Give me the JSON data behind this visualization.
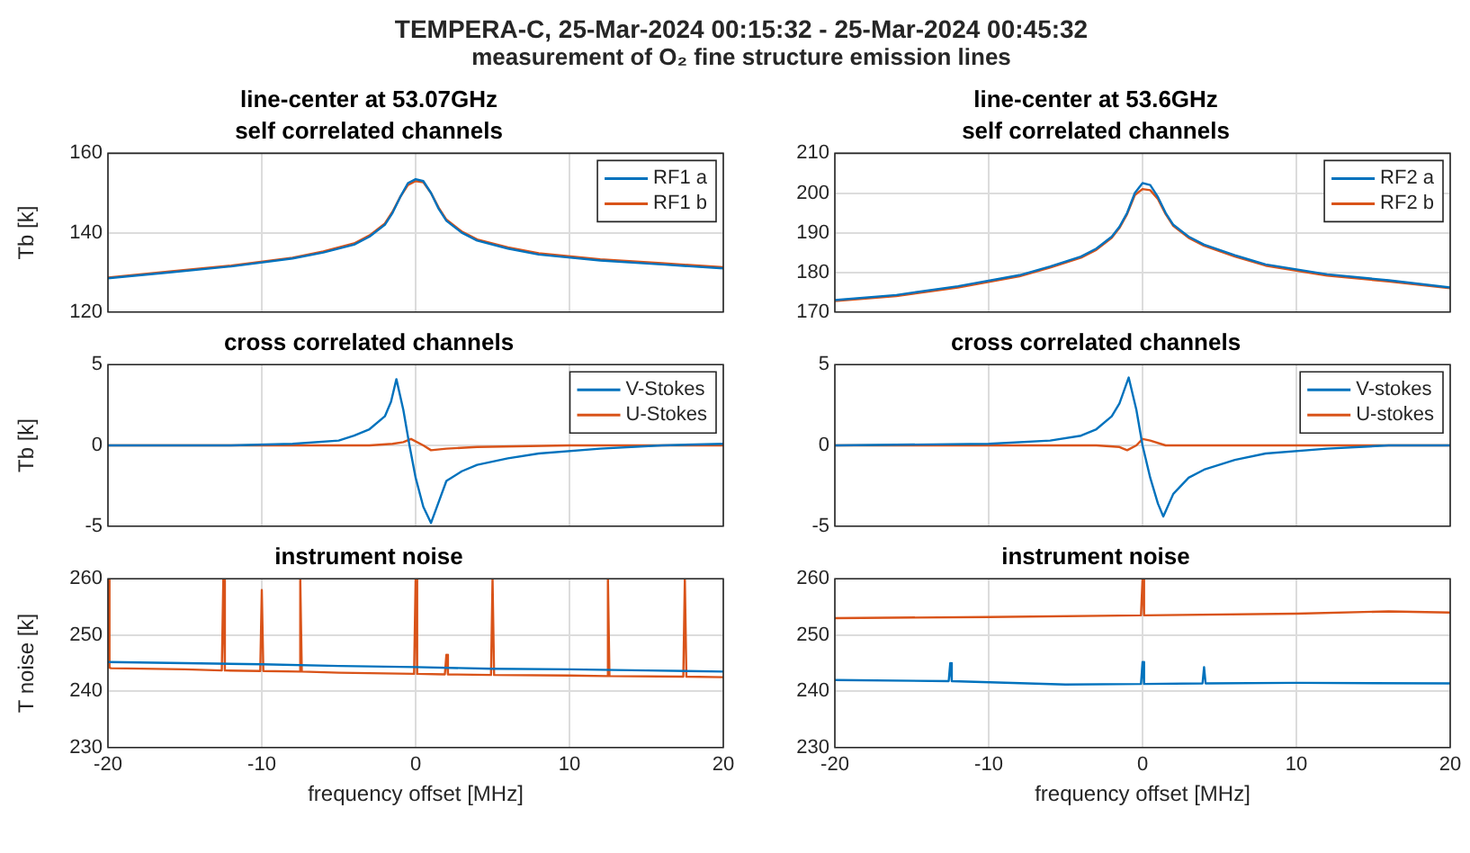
{
  "chart_data": [
    {
      "type": "other",
      "title": "TEMPERA-C, 25-Mar-2024 00:15:32 - 25-Mar-2024 00:45:32",
      "subtitle": "measurement of O₂ fine structure emission lines"
    },
    {
      "type": "line",
      "title": "line-center at 53.07GHz",
      "subtitle": "self correlated channels",
      "ylabel": "Tb [k]",
      "x": [
        -20,
        -16,
        -12,
        -8,
        -6,
        -4,
        -3,
        -2,
        -1.5,
        -1,
        -0.5,
        0,
        0.5,
        1,
        1.5,
        2,
        3,
        4,
        6,
        8,
        12,
        16,
        20
      ],
      "series": [
        {
          "name": "RF1 a",
          "color": "#0072bd",
          "values": [
            128.5,
            130,
            131.5,
            133.5,
            135,
            137,
            139,
            142,
            145,
            149,
            152.5,
            153.5,
            153,
            150,
            146,
            143,
            140,
            138,
            136,
            134.5,
            133,
            132,
            131
          ]
        },
        {
          "name": "RF1 b",
          "color": "#d95319",
          "values": [
            128.7,
            130.2,
            131.7,
            133.7,
            135.3,
            137.3,
            139.3,
            142.3,
            145.3,
            149,
            152,
            153,
            152.7,
            150,
            146.3,
            143.3,
            140.3,
            138.3,
            136.3,
            134.8,
            133.3,
            132.3,
            131.3
          ]
        }
      ],
      "xlim": [
        -20,
        20
      ],
      "xticks": [
        -20,
        -10,
        0,
        10,
        20
      ],
      "ylim": [
        120,
        160
      ],
      "yticks": [
        120,
        140,
        160
      ],
      "grid": true,
      "legend": "top right",
      "tick_labels": "y"
    },
    {
      "type": "line",
      "title": "line-center at 53.6GHz",
      "subtitle": "self correlated channels",
      "x": [
        -20,
        -16,
        -12,
        -8,
        -6,
        -4,
        -3,
        -2,
        -1.5,
        -1,
        -0.5,
        0,
        0.5,
        1,
        1.5,
        2,
        3,
        4,
        6,
        8,
        12,
        16,
        20
      ],
      "series": [
        {
          "name": "RF2 a",
          "color": "#0072bd",
          "values": [
            173,
            174.3,
            176.5,
            179.3,
            181.5,
            184,
            186,
            189,
            191.5,
            195,
            200,
            202.5,
            202,
            199,
            195,
            192,
            189,
            187,
            184.3,
            182,
            179.5,
            178,
            176.2
          ]
        },
        {
          "name": "RF2 b",
          "color": "#d95319",
          "values": [
            172.8,
            174,
            176.2,
            179,
            181.2,
            183.7,
            185.7,
            188.7,
            191.2,
            194.7,
            199.5,
            201,
            200.7,
            198.5,
            194.7,
            191.7,
            188.7,
            186.7,
            184,
            181.7,
            179.2,
            177.7,
            176
          ]
        }
      ],
      "xlim": [
        -20,
        20
      ],
      "xticks": [
        -20,
        -10,
        0,
        10,
        20
      ],
      "ylim": [
        170,
        210
      ],
      "yticks": [
        170,
        180,
        190,
        200,
        210
      ],
      "grid": true,
      "legend": "top right",
      "tick_labels": "y"
    },
    {
      "type": "line",
      "title": "cross correlated channels",
      "ylabel": "Tb [k]",
      "series": [
        {
          "name": "V-Stokes",
          "color": "#0072bd",
          "x": [
            -20,
            -12,
            -8,
            -5,
            -4,
            -3,
            -2,
            -1.6,
            -1.25,
            -0.8,
            -0.4,
            0,
            0.5,
            1,
            1.5,
            2,
            3,
            4,
            6,
            8,
            12,
            16,
            20
          ],
          "values": [
            0,
            0,
            0.1,
            0.3,
            0.6,
            1,
            1.8,
            2.7,
            4.1,
            2.2,
            0,
            -2,
            -3.8,
            -4.8,
            -3.5,
            -2.2,
            -1.6,
            -1.2,
            -0.8,
            -0.5,
            -0.2,
            0,
            0.1
          ]
        },
        {
          "name": "U-Stokes",
          "color": "#d95319",
          "x": [
            -20,
            -10,
            -3,
            -1.5,
            -0.8,
            -0.3,
            0.5,
            1,
            2,
            4,
            10,
            20
          ],
          "values": [
            0,
            0,
            0,
            0.1,
            0.2,
            0.4,
            0,
            -0.3,
            -0.2,
            -0.1,
            0,
            0
          ]
        }
      ],
      "xlim": [
        -20,
        20
      ],
      "xticks": [
        -20,
        -10,
        0,
        10,
        20
      ],
      "ylim": [
        -5,
        5
      ],
      "yticks": [
        -5,
        0,
        5
      ],
      "grid": true,
      "legend": "top right",
      "tick_labels": "y"
    },
    {
      "type": "line",
      "title": "cross correlated channels",
      "series": [
        {
          "name": "V-stokes",
          "color": "#0072bd",
          "x": [
            -20,
            -10,
            -6,
            -4,
            -3,
            -2,
            -1.5,
            -0.9,
            -0.4,
            0,
            0.5,
            1,
            1.35,
            2,
            3,
            4,
            6,
            8,
            12,
            16,
            20
          ],
          "values": [
            0,
            0.1,
            0.3,
            0.6,
            1,
            1.8,
            2.6,
            4.2,
            2.2,
            0,
            -2,
            -3.6,
            -4.4,
            -3,
            -2,
            -1.5,
            -0.9,
            -0.5,
            -0.2,
            0,
            0
          ]
        },
        {
          "name": "U-stokes",
          "color": "#d95319",
          "x": [
            -20,
            -10,
            -3,
            -1.5,
            -1,
            -0.4,
            0,
            0.5,
            1.5,
            3,
            10,
            20
          ],
          "values": [
            0,
            0,
            0,
            -0.1,
            -0.3,
            0,
            0.4,
            0.3,
            0,
            0,
            0,
            0
          ]
        }
      ],
      "xlim": [
        -20,
        20
      ],
      "xticks": [
        -20,
        -10,
        0,
        10,
        20
      ],
      "ylim": [
        -5,
        5
      ],
      "yticks": [
        -5,
        0,
        5
      ],
      "grid": true,
      "legend": "top right",
      "tick_labels": "y"
    },
    {
      "type": "line",
      "title": "instrument noise",
      "ylabel": "T noise [k]",
      "xlabel": "frequency offset [MHz]",
      "series": [
        {
          "color": "#0072bd",
          "x": [
            -20,
            -15,
            -10,
            -5,
            0,
            5,
            10,
            15,
            20
          ],
          "values": [
            245.2,
            245,
            244.8,
            244.5,
            244.3,
            244,
            243.9,
            243.7,
            243.5
          ]
        },
        {
          "color": "#d95319",
          "x": [
            -20,
            -19.9,
            -19.8,
            -15,
            -12.6,
            -12.5,
            -12.4,
            -10.1,
            -10,
            -9.9,
            -7.6,
            -7.5,
            -7.4,
            -5,
            -0.1,
            0,
            0.1,
            1.9,
            2,
            2.1,
            4.9,
            5,
            5.1,
            10,
            12.4,
            12.5,
            12.6,
            17.4,
            17.5,
            17.6,
            20
          ],
          "values": [
            260,
            244.2,
            244.1,
            243.9,
            243.7,
            260,
            243.7,
            243.6,
            258,
            243.6,
            243.5,
            260,
            243.5,
            243.3,
            243.1,
            260,
            243.1,
            243,
            246.5,
            243,
            242.9,
            260,
            242.9,
            242.8,
            242.7,
            260,
            242.7,
            242.6,
            260,
            242.6,
            242.5
          ]
        }
      ],
      "xlim": [
        -20,
        20
      ],
      "xticks": [
        -20,
        -10,
        0,
        10,
        20
      ],
      "ylim": [
        230,
        260
      ],
      "yticks": [
        230,
        240,
        250,
        260
      ],
      "grid": true
    },
    {
      "type": "line",
      "title": "instrument noise",
      "xlabel": "frequency offset [MHz]",
      "series": [
        {
          "color": "#d95319",
          "x": [
            -20,
            -10,
            -0.1,
            0,
            0.1,
            10,
            16,
            20
          ],
          "values": [
            253,
            253.2,
            253.5,
            260,
            253.5,
            253.8,
            254.2,
            254
          ]
        },
        {
          "color": "#0072bd",
          "x": [
            -20,
            -12.6,
            -12.5,
            -12.4,
            -5,
            -0.1,
            0,
            0.1,
            3.9,
            4,
            4.1,
            10,
            20
          ],
          "values": [
            242,
            241.8,
            245,
            241.8,
            241.2,
            241.3,
            245.2,
            241.3,
            241.4,
            244.3,
            241.4,
            241.5,
            241.4
          ]
        }
      ],
      "xlim": [
        -20,
        20
      ],
      "xticks": [
        -20,
        -10,
        0,
        10,
        20
      ],
      "ylim": [
        230,
        260
      ],
      "yticks": [
        230,
        240,
        250,
        260
      ],
      "grid": true
    }
  ]
}
